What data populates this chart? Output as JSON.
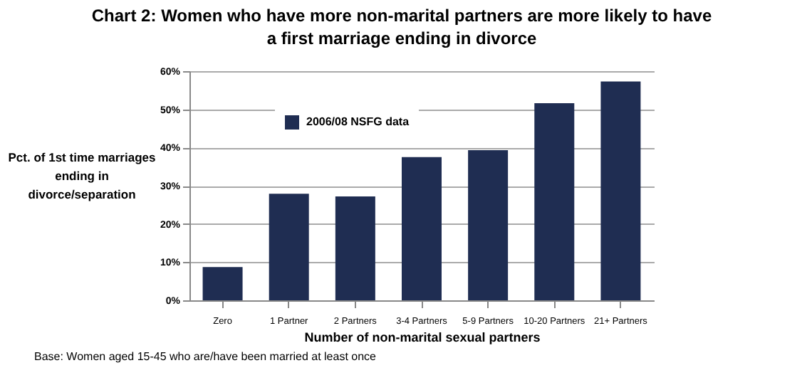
{
  "chart_data": {
    "type": "bar",
    "title": "Chart 2: Women who have more non-marital partners are more likely to have a first marriage ending in divorce",
    "xlabel": "Number of non-marital sexual partners",
    "ylabel": "Pct. of 1st time marriages ending in divorce/separation",
    "categories": [
      "Zero",
      "1 Partner",
      "2 Partners",
      "3-4 Partners",
      "5-9 Partners",
      "10-20 Partners",
      "21+ Partners"
    ],
    "series": [
      {
        "name": "2006/08 NSFG data",
        "color": "#1f2d52",
        "values": [
          8.7,
          27.9,
          27.2,
          37.5,
          39.3,
          51.6,
          57.3
        ]
      }
    ],
    "ylim": [
      0,
      60
    ],
    "yticks": [
      {
        "value": 0,
        "label": "0%"
      },
      {
        "value": 10,
        "label": "10%"
      },
      {
        "value": 20,
        "label": "20%"
      },
      {
        "value": 30,
        "label": "30%"
      },
      {
        "value": 40,
        "label": "40%"
      },
      {
        "value": 50,
        "label": "50%"
      },
      {
        "value": 60,
        "label": "60%"
      }
    ],
    "grid": "y",
    "legend": "top left",
    "annotations": [
      "Base: Women aged 15-45 who are/have been married at least once"
    ]
  }
}
